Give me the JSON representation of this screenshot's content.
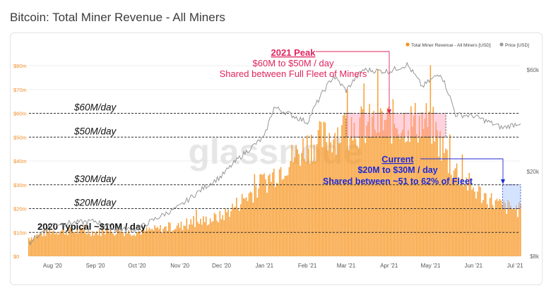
{
  "title": "Bitcoin: Total Miner Revenue - All Miners",
  "legend": [
    {
      "label": "Total Miner Revenue - All Miners [USD]",
      "color": "#f7931a"
    },
    {
      "label": "Price [USD]",
      "color": "#9a9a9a"
    }
  ],
  "watermark": "glassnode",
  "colors": {
    "bar": "#f7931a",
    "price": "#8c8c8c",
    "peak_text": "#e0245e",
    "current_text": "#1f2ad6",
    "guide": "#333333"
  },
  "chart_data": {
    "type": "bar",
    "title": "Bitcoin: Total Miner Revenue - All Miners",
    "x_ticks": [
      "Aug '20",
      "Sep '20",
      "Oct '20",
      "Nov '20",
      "Dec '20",
      "Jan '21",
      "Feb '21",
      "Mar '21",
      "Apr '21",
      "May '21",
      "Jun '21",
      "Jul '21"
    ],
    "x_range": [
      "2020-07-15",
      "2021-07-05"
    ],
    "y_left_ticks": [
      "$0",
      "$10m",
      "$20m",
      "$30m",
      "$40m",
      "$50m",
      "$60m",
      "$70m",
      "$80m"
    ],
    "y_left_range": [
      0,
      80
    ],
    "y_right_ticks": [
      "$8k",
      "$20k",
      "$60k"
    ],
    "y_right_scale": "log",
    "series": [
      {
        "name": "Total Miner Revenue - All Miners [USD]",
        "unit": "USD millions",
        "monthly_levels": [
          {
            "date": "2020-07-15",
            "value": 8
          },
          {
            "date": "2020-08-01",
            "value": 11
          },
          {
            "date": "2020-09-01",
            "value": 10.5
          },
          {
            "date": "2020-10-01",
            "value": 10.5
          },
          {
            "date": "2020-11-01",
            "value": 13
          },
          {
            "date": "2020-12-01",
            "value": 17
          },
          {
            "date": "2021-01-01",
            "value": 32
          },
          {
            "date": "2021-02-01",
            "value": 48
          },
          {
            "date": "2021-03-01",
            "value": 55
          },
          {
            "date": "2021-04-01",
            "value": 58
          },
          {
            "date": "2021-05-01",
            "value": 58
          },
          {
            "date": "2021-05-15",
            "value": 40
          },
          {
            "date": "2021-06-01",
            "value": 29
          },
          {
            "date": "2021-06-20",
            "value": 22
          },
          {
            "date": "2021-07-05",
            "value": 20
          }
        ]
      },
      {
        "name": "Price [USD]",
        "unit": "USD",
        "points": [
          {
            "date": "2020-07-15",
            "value": 9200
          },
          {
            "date": "2020-08-01",
            "value": 11300
          },
          {
            "date": "2020-09-01",
            "value": 11700
          },
          {
            "date": "2020-09-15",
            "value": 10700
          },
          {
            "date": "2020-10-01",
            "value": 10700
          },
          {
            "date": "2020-11-01",
            "value": 13700
          },
          {
            "date": "2020-12-01",
            "value": 19000
          },
          {
            "date": "2021-01-01",
            "value": 29000
          },
          {
            "date": "2021-01-08",
            "value": 40000
          },
          {
            "date": "2021-02-01",
            "value": 34000
          },
          {
            "date": "2021-02-20",
            "value": 56000
          },
          {
            "date": "2021-03-01",
            "value": 48000
          },
          {
            "date": "2021-03-13",
            "value": 60000
          },
          {
            "date": "2021-04-01",
            "value": 59000
          },
          {
            "date": "2021-04-14",
            "value": 63500
          },
          {
            "date": "2021-04-25",
            "value": 50000
          },
          {
            "date": "2021-05-08",
            "value": 58000
          },
          {
            "date": "2021-05-19",
            "value": 37000
          },
          {
            "date": "2021-06-01",
            "value": 36500
          },
          {
            "date": "2021-06-22",
            "value": 32000
          },
          {
            "date": "2021-07-05",
            "value": 34000
          }
        ]
      }
    ],
    "reference_lines": [
      {
        "value": 60,
        "label": "$60M/day"
      },
      {
        "value": 50,
        "label": "$50M/day"
      },
      {
        "value": 30,
        "label": "$30M/day"
      },
      {
        "value": 20,
        "label": "$20M/day"
      },
      {
        "value": 10,
        "label": "2020 Typical ~$10M / day"
      }
    ],
    "annotations": {
      "peak": {
        "heading": "2021 Peak",
        "line1": "$60M to $50M / day",
        "line2": "Shared between Full Fleet of Miners",
        "range": [
          "2021-03-01",
          "2021-05-12"
        ]
      },
      "current": {
        "heading": "Current",
        "line1": "$20M to $30M / day",
        "line2": "Shared between ~51 to 62% of Fleet",
        "range": [
          "2021-06-22",
          "2021-07-05"
        ]
      }
    }
  }
}
